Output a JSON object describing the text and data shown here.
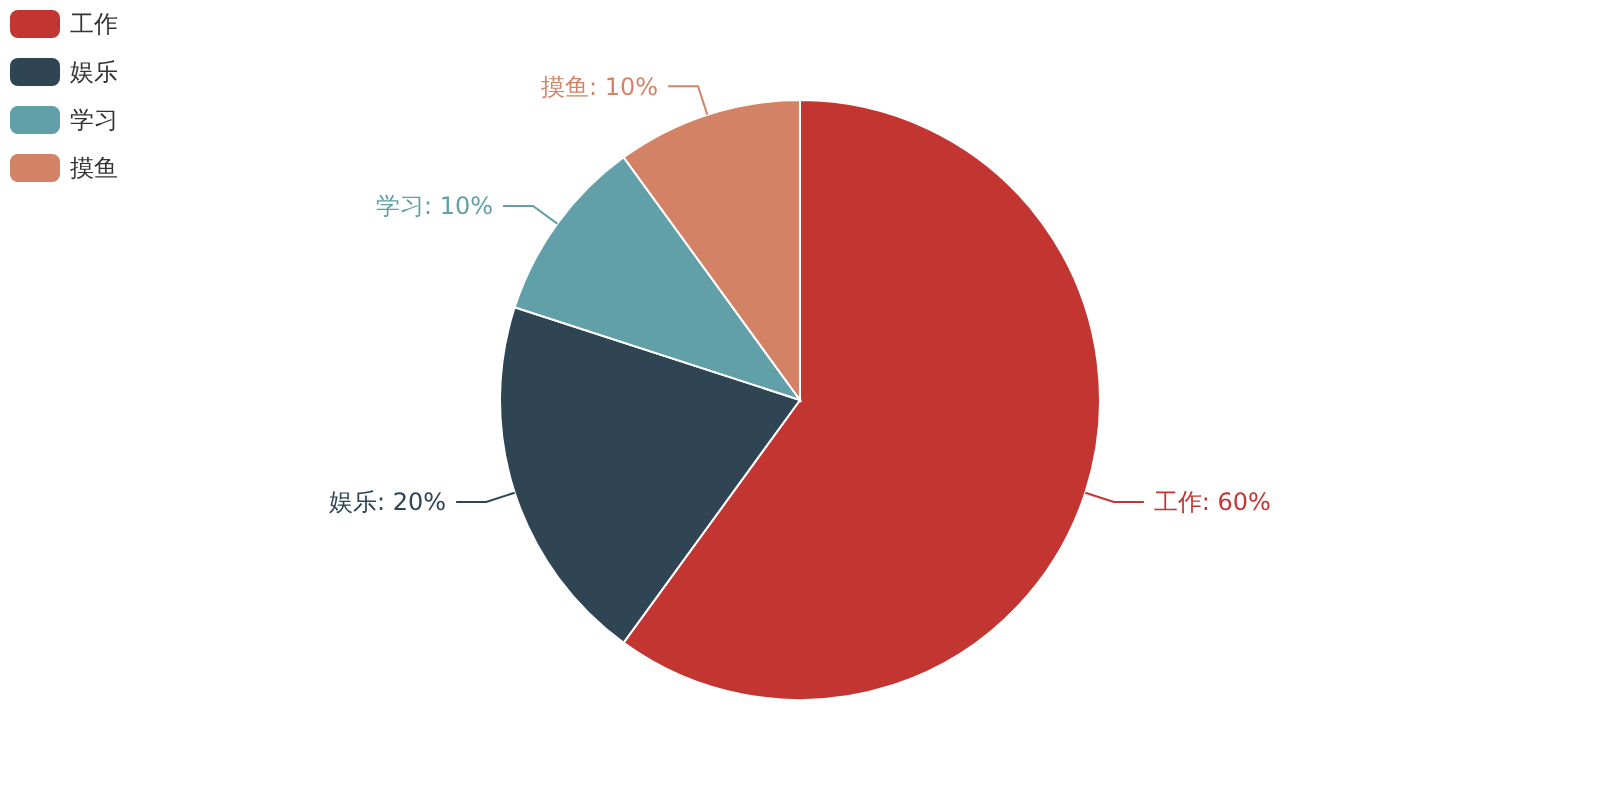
{
  "chart_data": {
    "type": "pie",
    "categories": [
      "工作",
      "娱乐",
      "学习",
      "摸鱼"
    ],
    "values": [
      60,
      20,
      10,
      10
    ],
    "colors": [
      "#c23531",
      "#2f4554",
      "#61a0a8",
      "#d48265"
    ],
    "value_labels": [
      "工作: 60%",
      "娱乐: 20%",
      "学习: 10%",
      "摸鱼: 10%"
    ],
    "legend": "top left"
  }
}
